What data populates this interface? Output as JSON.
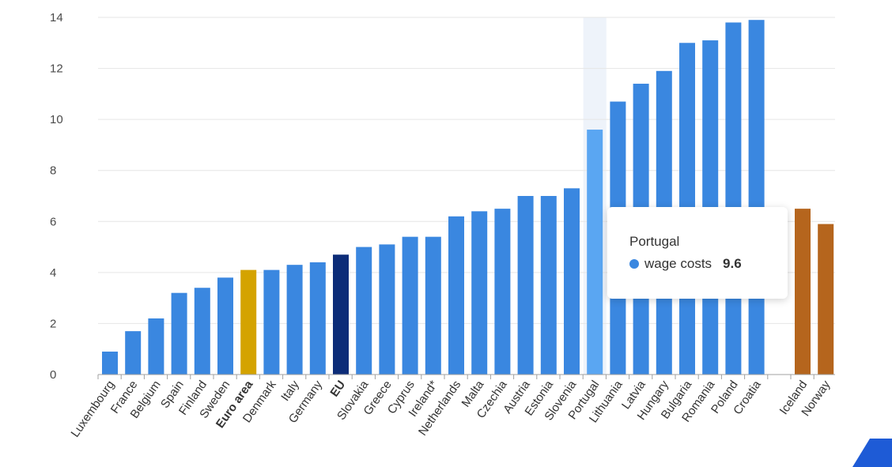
{
  "chart_data": {
    "type": "bar",
    "categories": [
      "Luxembourg",
      "France",
      "Belgium",
      "Spain",
      "Finland",
      "Sweden",
      "Euro area",
      "Denmark",
      "Italy",
      "Germany",
      "EU",
      "Slovakia",
      "Greece",
      "Cyprus",
      "Ireland*",
      "Netherlands",
      "Malta",
      "Czechia",
      "Austria",
      "Estonia",
      "Slovenia",
      "Portugal",
      "Lithuania",
      "Latvia",
      "Hungary",
      "Bulgaria",
      "Romania",
      "Poland",
      "Croatia",
      "Iceland",
      "Norway"
    ],
    "bold_categories": [
      "Euro area",
      "EU"
    ],
    "series": [
      {
        "values": [
          0.9,
          1.7,
          2.2,
          3.2,
          3.4,
          3.8,
          4.1,
          4.1,
          4.3,
          4.4,
          4.7,
          5.0,
          5.1,
          5.4,
          5.4,
          6.2,
          6.4,
          6.5,
          7.0,
          7.0,
          7.3,
          9.6,
          10.7,
          11.4,
          11.9,
          13.0,
          13.1,
          13.8,
          13.9,
          6.5,
          5.9
        ]
      }
    ],
    "title": "",
    "xlabel": "",
    "ylabel": "",
    "ylim": [
      0,
      14
    ],
    "yticks": [
      0,
      2,
      4,
      6,
      8,
      10,
      12,
      14
    ],
    "grid": true,
    "colors": {
      "default": "#3a87e0",
      "euro_area": "#d4a300",
      "eu": "#0c2c78",
      "non_eu": "#b5651d",
      "highlight": "#5aa6f2",
      "hover_band": "#eef3fa"
    },
    "highlighted_category": "Portugal"
  },
  "tooltip": {
    "title": "Portugal",
    "series_label": "wage costs",
    "value": "9.6"
  }
}
